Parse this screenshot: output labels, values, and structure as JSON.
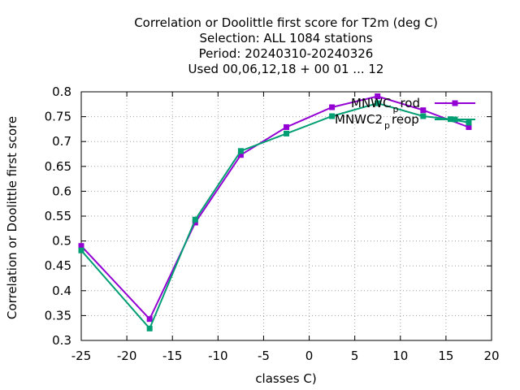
{
  "chart_data": {
    "type": "line",
    "title_lines": [
      "Correlation or Doolittle first score  for T2m (deg C)",
      "Selection: ALL   1084 stations",
      "Period: 20240310-20240326",
      "Used  00,06,12,18 + 00 01 ... 12"
    ],
    "xlabel": "classes C)",
    "ylabel": "Correlation or Doolittle first score",
    "xlim": [
      -25,
      20
    ],
    "ylim": [
      0.3,
      0.8
    ],
    "xticks": [
      -25,
      -20,
      -15,
      -10,
      -5,
      0,
      5,
      10,
      15,
      20
    ],
    "yticks": [
      0.3,
      0.35,
      0.4,
      0.45,
      0.5,
      0.55,
      0.6,
      0.65,
      0.7,
      0.75,
      0.8
    ],
    "grid": true,
    "legend_position": "top-right",
    "series": [
      {
        "name": "MNWC_prod",
        "legend_main": "MNWC",
        "legend_sub": "p",
        "legend_tail": "rod",
        "color": "#9400d3",
        "marker": "filled-square",
        "x": [
          -25,
          -17.5,
          -12.5,
          -7.5,
          -2.5,
          2.5,
          7.5,
          12.5,
          17.5
        ],
        "y": [
          0.49,
          0.343,
          0.537,
          0.673,
          0.729,
          0.769,
          0.791,
          0.763,
          0.729
        ]
      },
      {
        "name": "MNWC2_preop",
        "legend_main": "MNWC2",
        "legend_sub": "p",
        "legend_tail": "reop",
        "color": "#009e73",
        "marker": "filled-square",
        "x": [
          -25,
          -17.5,
          -12.5,
          -7.5,
          -2.5,
          2.5,
          7.5,
          12.5,
          15.5,
          17.5
        ],
        "y": [
          0.481,
          0.324,
          0.543,
          0.681,
          0.716,
          0.751,
          0.777,
          0.751,
          0.745,
          0.738
        ]
      }
    ]
  }
}
